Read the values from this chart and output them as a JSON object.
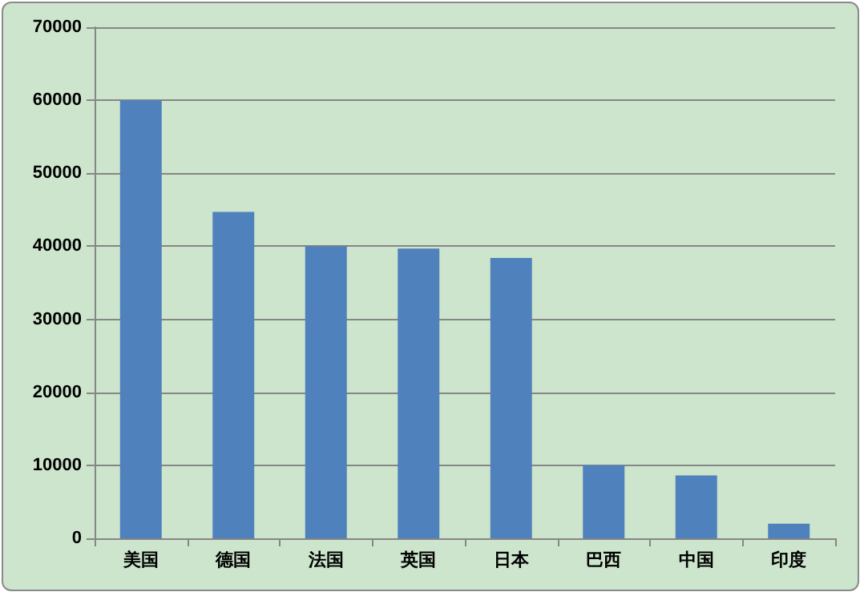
{
  "chart_data": {
    "type": "bar",
    "categories": [
      "美国",
      "德国",
      "法国",
      "英国",
      "日本",
      "巴西",
      "中国",
      "印度"
    ],
    "values": [
      60000,
      44700,
      40000,
      39700,
      38400,
      10000,
      8600,
      2000
    ],
    "color": "#4f81bd",
    "ylim": [
      0,
      70000
    ],
    "yticks": [
      0,
      10000,
      20000,
      30000,
      40000,
      50000,
      60000,
      70000
    ],
    "grid": "y"
  }
}
